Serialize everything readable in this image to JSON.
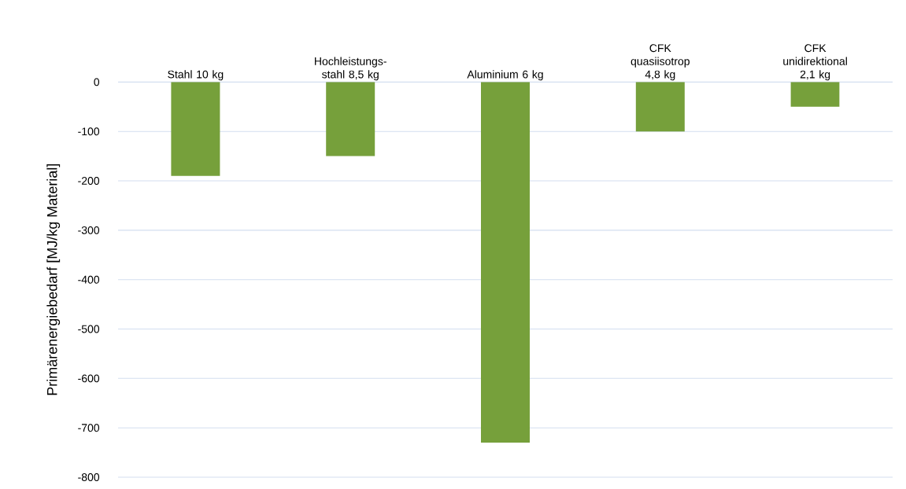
{
  "chart_data": {
    "type": "bar",
    "ylabel": "Primärenergiebedarf [MJ/kg Material]",
    "categories": [
      "Stahl 10 kg",
      "Hochleistungs-stahl 8,5 kg",
      "Aluminium 6 kg",
      "CFK quasiisotrop 4,8 kg",
      "CFK unidirektional 2,1 kg"
    ],
    "values": [
      -190,
      -150,
      -730,
      -100,
      -50
    ],
    "color": "#76a03b",
    "ylim": [
      -800,
      0
    ],
    "yticks": [
      -800,
      -700,
      -600,
      -500,
      -400,
      -300,
      -200,
      -100,
      0
    ],
    "grid": "y"
  }
}
